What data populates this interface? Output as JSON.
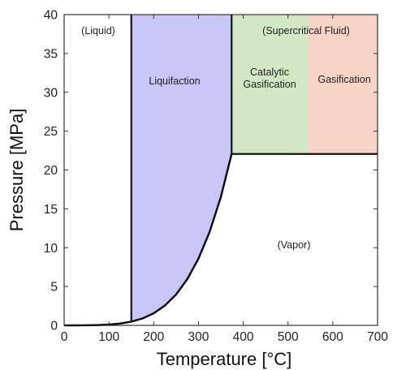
{
  "chart_data": {
    "type": "area",
    "xlabel": "Temperature [°C]",
    "ylabel": "Pressure [MPa]",
    "xlim": [
      0,
      700
    ],
    "ylim": [
      0,
      40
    ],
    "xticks": [
      "0",
      "100",
      "200",
      "300",
      "400",
      "500",
      "600",
      "700"
    ],
    "yticks": [
      "0",
      "5",
      "10",
      "15",
      "20",
      "25",
      "30",
      "35",
      "40"
    ],
    "critical_point": {
      "x": 374,
      "y": 22.1
    },
    "regions": [
      {
        "label": "(Liquid)",
        "x_range": [
          0,
          150
        ],
        "y_range": [
          0,
          40
        ],
        "color": "#ffffff"
      },
      {
        "label": "Liquifaction",
        "x_range": [
          150,
          374
        ],
        "y_range": [
          0,
          40
        ],
        "color": "#c8c6f7",
        "lower_bound": "vapor-pressure-curve"
      },
      {
        "label": "Catalytic\nGasification",
        "x_range": [
          374,
          545
        ],
        "y_range": [
          22.1,
          40
        ],
        "color": "#d2e8c4"
      },
      {
        "label": "Gasification",
        "x_range": [
          545,
          700
        ],
        "y_range": [
          22.1,
          40
        ],
        "color": "#f7d4c6"
      },
      {
        "label": "(Supercritical Fluid)",
        "x_range": [
          374,
          700
        ],
        "y_range": [
          22.1,
          40
        ],
        "color": "none"
      },
      {
        "label": "(Vapor)",
        "x_range": [
          374,
          700
        ],
        "y_range": [
          0,
          22.1
        ],
        "color": "#ffffff"
      }
    ],
    "vapor_pressure_curve": {
      "x": [
        0,
        25,
        50,
        75,
        100,
        125,
        150,
        175,
        200,
        225,
        250,
        275,
        300,
        325,
        350,
        374
      ],
      "y": [
        0.0006,
        0.003,
        0.012,
        0.039,
        0.101,
        0.232,
        0.476,
        0.89,
        1.55,
        2.55,
        3.97,
        5.95,
        8.59,
        12.05,
        16.53,
        22.06
      ]
    },
    "boundaries": [
      {
        "name": "liquid-boundary",
        "x": [
          150,
          150
        ],
        "y": [
          0.476,
          40
        ]
      },
      {
        "name": "critical-temperature-boundary",
        "x": [
          374,
          374
        ],
        "y": [
          22.06,
          40
        ]
      },
      {
        "name": "critical-pressure-boundary",
        "x": [
          374,
          700
        ],
        "y": [
          22.06,
          22.06
        ]
      }
    ]
  }
}
